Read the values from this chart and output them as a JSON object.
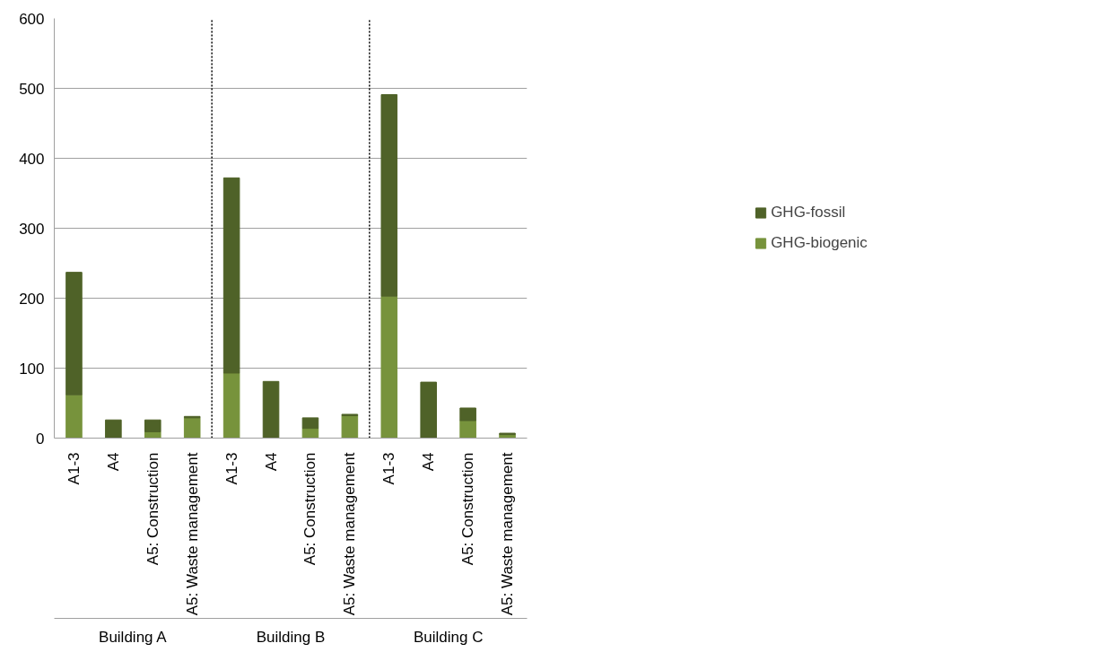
{
  "chart_data": {
    "type": "bar",
    "stacked": true,
    "categories": [
      "A1-3",
      "A4",
      "A5: Construction",
      "A5: Waste management",
      "A1-3",
      "A4",
      "A5: Construction",
      "A5: Waste management",
      "A1-3",
      "A4",
      "A5: Construction",
      "A5: Waste management"
    ],
    "annotations": [
      "Building A",
      "Building B",
      "Building C"
    ],
    "series": [
      {
        "name": "GHG-biogenic",
        "color": "#77933c",
        "values": [
          62,
          0,
          9,
          29,
          93,
          0,
          14,
          32,
          203,
          0,
          25,
          5
        ]
      },
      {
        "name": "GHG-fossil",
        "color": "#4f6228",
        "values": [
          175,
          26,
          17,
          2,
          279,
          81,
          15,
          2,
          288,
          80,
          18,
          2
        ]
      }
    ],
    "ylim": [
      0,
      600
    ],
    "yticks": [
      0,
      100,
      200,
      300,
      400,
      500,
      600
    ],
    "grid": "y",
    "legend": "right"
  }
}
